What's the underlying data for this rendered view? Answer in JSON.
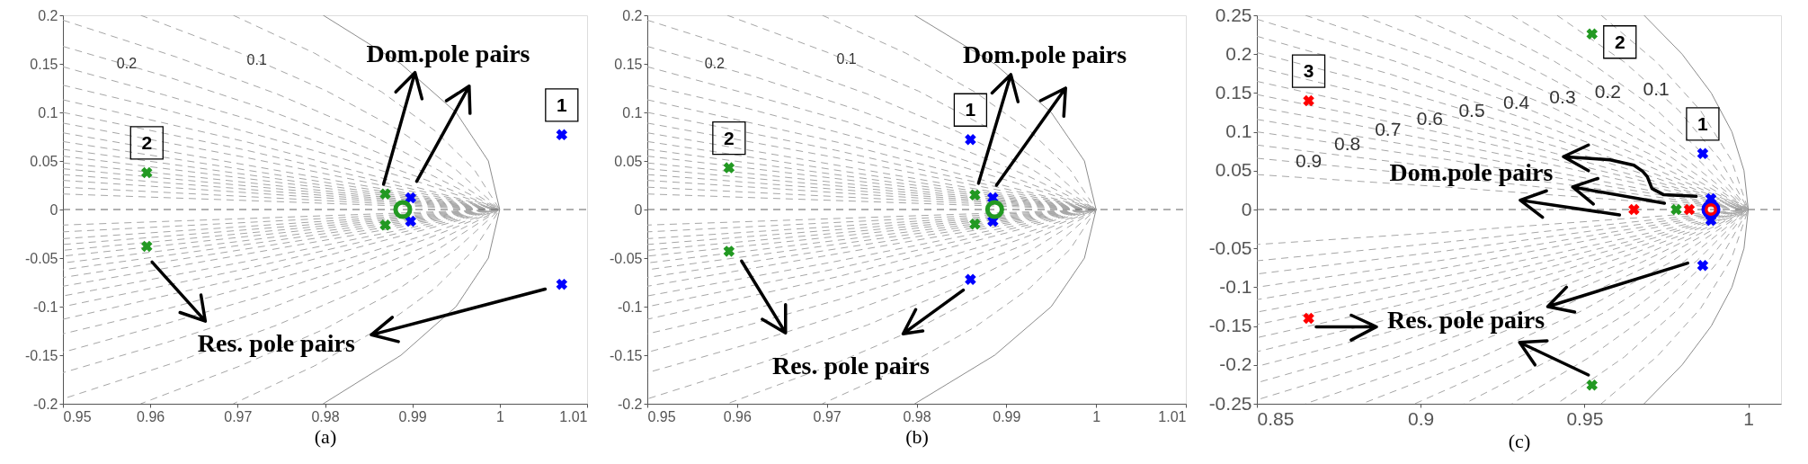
{
  "chart_data": [
    {
      "type": "scatter",
      "xlabel": "(a)",
      "xlim": [
        0.95,
        1.01
      ],
      "xticks": [
        0.95,
        0.96,
        0.97,
        0.98,
        0.99,
        1,
        1.01
      ],
      "ylim": [
        -0.2,
        0.2
      ],
      "yticks": [
        -0.2,
        -0.15,
        -0.1,
        -0.05,
        0,
        0.05,
        0.1,
        0.15,
        0.2
      ],
      "series": [
        {
          "type": "line",
          "line_style": "dashed",
          "color": "#a6a6a6",
          "x": [
            0.9695,
            0.9788,
            0.9865,
            0.9926,
            0.9971,
            1,
            0.9971,
            0.9926,
            0.9865,
            0.9788,
            0.9695
          ],
          "values": [
            0.2,
            0.161,
            0.121,
            0.081,
            0.041,
            0,
            -0.041,
            -0.081,
            -0.121,
            -0.161,
            -0.2
          ]
        },
        {
          "type": "line",
          "line_style": "dashed",
          "color": "#a6a6a6",
          "x": [
            0.9589,
            0.9703,
            0.9802,
            0.9884,
            0.995,
            1,
            0.995,
            0.9884,
            0.9802,
            0.9703,
            0.9589
          ],
          "values": [
            0.2,
            0.161,
            0.122,
            0.082,
            0.041,
            0,
            -0.041,
            -0.082,
            -0.122,
            -0.161,
            -0.2
          ]
        },
        {
          "type": "line",
          "line_style": "dashed",
          "color": "#a6a6a6",
          "x": [
            0.95,
            0.963,
            0.9745,
            0.9846,
            0.9931,
            1,
            0.9931,
            0.9846,
            0.9745,
            0.963,
            0.95
          ],
          "values": [
            0.195,
            0.157,
            0.119,
            0.08,
            0.04,
            0,
            -0.04,
            -0.08,
            -0.119,
            -0.157,
            -0.195
          ]
        },
        {
          "type": "line",
          "line_style": "dashed",
          "color": "#a6a6a6",
          "x": [
            0.95,
            0.9622,
            0.9733,
            0.9833,
            0.9923,
            1,
            0.9923,
            0.9833,
            0.9733,
            0.9622,
            0.95
          ],
          "values": [
            0.168,
            0.136,
            0.103,
            0.069,
            0.035,
            0,
            -0.035,
            -0.069,
            -0.103,
            -0.136,
            -0.168
          ]
        },
        {
          "type": "line",
          "line_style": "dashed",
          "color": "#a6a6a6",
          "x": [
            0.95,
            0.9616,
            0.9724,
            0.9825,
            0.9917,
            1,
            0.9917,
            0.9825,
            0.9724,
            0.9616,
            0.95
          ],
          "values": [
            0.147,
            0.118,
            0.09,
            0.06,
            0.03,
            0,
            -0.03,
            -0.06,
            -0.09,
            -0.118,
            -0.147
          ]
        },
        {
          "type": "line",
          "line_style": "dashed",
          "color": "#a6a6a6",
          "x": [
            0.95,
            0.9612,
            0.9718,
            0.9818,
            0.9912,
            1,
            0.9912,
            0.9818,
            0.9718,
            0.9612,
            0.95
          ],
          "values": [
            0.128,
            0.104,
            0.078,
            0.053,
            0.027,
            0,
            -0.027,
            -0.053,
            -0.078,
            -0.104,
            -0.128
          ]
        },
        {
          "type": "line",
          "line_style": "dashed",
          "color": "#a6a6a6",
          "x": [
            0.95,
            0.9713,
            1,
            0.9713,
            0.95
          ],
          "values": [
            0.113,
            0.069,
            0,
            -0.069,
            -0.113
          ]
        },
        {
          "type": "line",
          "line_style": "dashed",
          "color": "#a6a6a6",
          "x": [
            0.95,
            0.971,
            1,
            0.971,
            0.95
          ],
          "values": [
            0.1,
            0.061,
            0,
            -0.061,
            -0.1
          ]
        },
        {
          "type": "line",
          "line_style": "dashed",
          "color": "#a6a6a6",
          "x": [
            0.95,
            0.9707,
            1,
            0.9707,
            0.95
          ],
          "values": [
            0.089,
            0.054,
            0,
            -0.054,
            -0.089
          ]
        },
        {
          "type": "line",
          "line_style": "dashed",
          "color": "#a6a6a6",
          "x": [
            0.95,
            1,
            0.95
          ],
          "values": [
            0.079,
            0,
            -0.079
          ]
        },
        {
          "type": "line",
          "line_style": "dashed",
          "color": "#a6a6a6",
          "x": [
            0.95,
            1,
            0.95
          ],
          "values": [
            0.07,
            0,
            -0.07
          ]
        },
        {
          "type": "line",
          "line_style": "dashed",
          "color": "#a6a6a6",
          "x": [
            0.95,
            1,
            0.95
          ],
          "values": [
            0.062,
            0,
            -0.062
          ]
        },
        {
          "type": "line",
          "line_style": "dashed",
          "color": "#a6a6a6",
          "x": [
            0.95,
            1,
            0.95
          ],
          "values": [
            0.055,
            0,
            -0.055
          ]
        },
        {
          "type": "line",
          "line_style": "dashed",
          "color": "#a6a6a6",
          "x": [
            0.95,
            1,
            0.95
          ],
          "values": [
            0.048,
            0,
            -0.048
          ]
        },
        {
          "type": "line",
          "line_style": "dashed",
          "color": "#a6a6a6",
          "x": [
            0.95,
            1,
            0.95
          ],
          "values": [
            0.042,
            0,
            -0.042
          ]
        },
        {
          "type": "line",
          "line_style": "dashed",
          "color": "#a6a6a6",
          "x": [
            0.95,
            1,
            0.95
          ],
          "values": [
            0.036,
            0,
            -0.036
          ]
        },
        {
          "type": "line",
          "line_style": "dashed",
          "color": "#a6a6a6",
          "x": [
            0.95,
            1,
            0.95
          ],
          "values": [
            0.03,
            0,
            -0.03
          ]
        },
        {
          "type": "line",
          "line_style": "dashed",
          "color": "#a6a6a6",
          "x": [
            0.95,
            1,
            0.95
          ],
          "values": [
            0.023,
            0,
            -0.023
          ]
        },
        {
          "type": "line",
          "line_style": "dashed",
          "color": "#a6a6a6",
          "x": [
            0.95,
            1,
            0.95
          ],
          "values": [
            0.016,
            0,
            -0.016
          ]
        },
        {
          "type": "line",
          "line_style": "dashed",
          "color": "#606060",
          "x": [
            0.95,
            1.01
          ],
          "values": [
            0,
            0
          ]
        },
        {
          "type": "line",
          "line_style": "solid",
          "color": "#8c8c8c",
          "x": [
            0.9798,
            0.9887,
            0.995,
            0.9987,
            1,
            0.9987,
            0.995,
            0.9887,
            0.9798
          ],
          "values": [
            0.2,
            0.15,
            0.1,
            0.05,
            0,
            -0.05,
            -0.1,
            -0.15,
            -0.2
          ]
        },
        {
          "type": "line",
          "line_style": "solid",
          "color": "#000000",
          "x": [
            0.9867,
            0.9903,
            0.9881,
            0.9903,
            0.9911
          ],
          "values": [
            0.026,
            0.141,
            0.121,
            0.141,
            0.114
          ]
        },
        {
          "type": "line",
          "line_style": "solid",
          "color": "#000000",
          "x": [
            0.9905,
            0.9965,
            0.9939,
            0.9965,
            0.9966
          ],
          "values": [
            0.029,
            0.127,
            0.112,
            0.127,
            0.099
          ]
        },
        {
          "type": "line",
          "line_style": "solid",
          "color": "#000000",
          "x": [
            0.9602,
            0.9663,
            0.9634,
            0.9663,
            0.9658
          ],
          "values": [
            -0.054,
            -0.115,
            -0.106,
            -0.115,
            -0.088
          ]
        },
        {
          "type": "line",
          "line_style": "solid",
          "color": "#000000",
          "x": [
            1.0052,
            0.9853,
            0.9877,
            0.9853,
            0.9884
          ],
          "values": [
            -0.082,
            -0.129,
            -0.111,
            -0.129,
            -0.136
          ]
        },
        {
          "name": "2",
          "marker": "cross",
          "color": "#229922",
          "x": [
            0.9596,
            0.9596
          ],
          "values": [
            0.038,
            -0.038
          ]
        },
        {
          "marker": "cross",
          "color": "#229922",
          "x": [
            0.9869,
            0.9869
          ],
          "values": [
            0.016,
            -0.016
          ]
        },
        {
          "name": "1",
          "marker": "cross",
          "color": "#0000ff",
          "x": [
            1.0071,
            1.0071
          ],
          "values": [
            0.077,
            -0.077
          ]
        },
        {
          "marker": "cross",
          "color": "#0000ff",
          "x": [
            0.9898,
            0.9898
          ],
          "values": [
            0.012,
            -0.012
          ]
        },
        {
          "marker": "circle",
          "color": "#229922",
          "x": [
            0.9889
          ],
          "values": [
            0
          ]
        }
      ],
      "annotations": [
        "Dom.pole pairs",
        "Res. pole pairs",
        {
          "text": "0.2",
          "x": 0.9573,
          "y": 0.15
        },
        {
          "text": "0.1",
          "x": 0.9722,
          "y": 0.154
        }
      ]
    },
    {
      "type": "scatter",
      "xlabel": "(b)",
      "xlim": [
        0.95,
        1.01
      ],
      "xticks": [
        0.95,
        0.96,
        0.97,
        0.98,
        0.99,
        1,
        1.01
      ],
      "ylim": [
        -0.2,
        0.2
      ],
      "yticks": [
        -0.2,
        -0.15,
        -0.1,
        -0.05,
        0,
        0.05,
        0.1,
        0.15,
        0.2
      ],
      "series": [
        {
          "type": "line",
          "line_style": "dashed",
          "color": "#a6a6a6",
          "x": [
            0.9695,
            0.9788,
            0.9865,
            0.9926,
            0.9971,
            1,
            0.9971,
            0.9926,
            0.9865,
            0.9788,
            0.9695
          ],
          "values": [
            0.2,
            0.161,
            0.121,
            0.081,
            0.041,
            0,
            -0.041,
            -0.081,
            -0.121,
            -0.161,
            -0.2
          ]
        },
        {
          "type": "line",
          "line_style": "dashed",
          "color": "#a6a6a6",
          "x": [
            0.9589,
            0.9703,
            0.9802,
            0.9884,
            0.995,
            1,
            0.995,
            0.9884,
            0.9802,
            0.9703,
            0.9589
          ],
          "values": [
            0.2,
            0.161,
            0.122,
            0.082,
            0.041,
            0,
            -0.041,
            -0.082,
            -0.122,
            -0.161,
            -0.2
          ]
        },
        {
          "type": "line",
          "line_style": "dashed",
          "color": "#a6a6a6",
          "x": [
            0.95,
            0.963,
            0.9745,
            0.9846,
            0.9931,
            1,
            0.9931,
            0.9846,
            0.9745,
            0.963,
            0.95
          ],
          "values": [
            0.195,
            0.157,
            0.119,
            0.08,
            0.04,
            0,
            -0.04,
            -0.08,
            -0.119,
            -0.157,
            -0.195
          ]
        },
        {
          "type": "line",
          "line_style": "dashed",
          "color": "#a6a6a6",
          "x": [
            0.95,
            0.9622,
            0.9733,
            0.9833,
            0.9923,
            1,
            0.9923,
            0.9833,
            0.9733,
            0.9622,
            0.95
          ],
          "values": [
            0.168,
            0.136,
            0.103,
            0.069,
            0.035,
            0,
            -0.035,
            -0.069,
            -0.103,
            -0.136,
            -0.168
          ]
        },
        {
          "type": "line",
          "line_style": "dashed",
          "color": "#a6a6a6",
          "x": [
            0.95,
            0.9616,
            0.9724,
            0.9825,
            0.9917,
            1,
            0.9917,
            0.9825,
            0.9724,
            0.9616,
            0.95
          ],
          "values": [
            0.147,
            0.118,
            0.09,
            0.06,
            0.03,
            0,
            -0.03,
            -0.06,
            -0.09,
            -0.118,
            -0.147
          ]
        },
        {
          "type": "line",
          "line_style": "dashed",
          "color": "#a6a6a6",
          "x": [
            0.95,
            0.9612,
            0.9718,
            0.9818,
            0.9912,
            1,
            0.9912,
            0.9818,
            0.9718,
            0.9612,
            0.95
          ],
          "values": [
            0.128,
            0.104,
            0.078,
            0.053,
            0.027,
            0,
            -0.027,
            -0.053,
            -0.078,
            -0.104,
            -0.128
          ]
        },
        {
          "type": "line",
          "line_style": "dashed",
          "color": "#a6a6a6",
          "x": [
            0.95,
            0.9713,
            1,
            0.9713,
            0.95
          ],
          "values": [
            0.113,
            0.069,
            0,
            -0.069,
            -0.113
          ]
        },
        {
          "type": "line",
          "line_style": "dashed",
          "color": "#a6a6a6",
          "x": [
            0.95,
            0.971,
            1,
            0.971,
            0.95
          ],
          "values": [
            0.1,
            0.061,
            0,
            -0.061,
            -0.1
          ]
        },
        {
          "type": "line",
          "line_style": "dashed",
          "color": "#a6a6a6",
          "x": [
            0.95,
            0.9707,
            1,
            0.9707,
            0.95
          ],
          "values": [
            0.089,
            0.054,
            0,
            -0.054,
            -0.089
          ]
        },
        {
          "type": "line",
          "line_style": "dashed",
          "color": "#a6a6a6",
          "x": [
            0.95,
            1,
            0.95
          ],
          "values": [
            0.079,
            0,
            -0.079
          ]
        },
        {
          "type": "line",
          "line_style": "dashed",
          "color": "#a6a6a6",
          "x": [
            0.95,
            1,
            0.95
          ],
          "values": [
            0.07,
            0,
            -0.07
          ]
        },
        {
          "type": "line",
          "line_style": "dashed",
          "color": "#a6a6a6",
          "x": [
            0.95,
            1,
            0.95
          ],
          "values": [
            0.062,
            0,
            -0.062
          ]
        },
        {
          "type": "line",
          "line_style": "dashed",
          "color": "#a6a6a6",
          "x": [
            0.95,
            1,
            0.95
          ],
          "values": [
            0.055,
            0,
            -0.055
          ]
        },
        {
          "type": "line",
          "line_style": "dashed",
          "color": "#a6a6a6",
          "x": [
            0.95,
            1,
            0.95
          ],
          "values": [
            0.048,
            0,
            -0.048
          ]
        },
        {
          "type": "line",
          "line_style": "dashed",
          "color": "#a6a6a6",
          "x": [
            0.95,
            1,
            0.95
          ],
          "values": [
            0.042,
            0,
            -0.042
          ]
        },
        {
          "type": "line",
          "line_style": "dashed",
          "color": "#a6a6a6",
          "x": [
            0.95,
            1,
            0.95
          ],
          "values": [
            0.036,
            0,
            -0.036
          ]
        },
        {
          "type": "line",
          "line_style": "dashed",
          "color": "#a6a6a6",
          "x": [
            0.95,
            1,
            0.95
          ],
          "values": [
            0.03,
            0,
            -0.03
          ]
        },
        {
          "type": "line",
          "line_style": "dashed",
          "color": "#a6a6a6",
          "x": [
            0.95,
            1,
            0.95
          ],
          "values": [
            0.023,
            0,
            -0.023
          ]
        },
        {
          "type": "line",
          "line_style": "dashed",
          "color": "#a6a6a6",
          "x": [
            0.95,
            1,
            0.95
          ],
          "values": [
            0.016,
            0,
            -0.016
          ]
        },
        {
          "type": "line",
          "line_style": "dashed",
          "color": "#606060",
          "x": [
            0.95,
            1.01
          ],
          "values": [
            0,
            0
          ]
        },
        {
          "type": "line",
          "line_style": "solid",
          "color": "#8c8c8c",
          "x": [
            0.9798,
            0.9887,
            0.995,
            0.9987,
            1,
            0.9987,
            0.995,
            0.9887,
            0.9798
          ],
          "values": [
            0.2,
            0.15,
            0.1,
            0.05,
            0,
            -0.05,
            -0.1,
            -0.15,
            -0.2
          ]
        },
        {
          "type": "line",
          "line_style": "solid",
          "color": "#000000",
          "x": [
            0.9869,
            0.9905,
            0.9884,
            0.9905,
            0.9913
          ],
          "values": [
            0.027,
            0.139,
            0.12,
            0.139,
            0.111
          ]
        },
        {
          "type": "line",
          "line_style": "solid",
          "color": "#000000",
          "x": [
            0.9889,
            0.9966,
            0.9938,
            0.9966,
            0.9964
          ],
          "values": [
            0.025,
            0.125,
            0.112,
            0.125,
            0.096
          ]
        },
        {
          "type": "line",
          "line_style": "solid",
          "color": "#000000",
          "x": [
            0.9605,
            0.9654,
            0.9628,
            0.9654,
            0.9654
          ],
          "values": [
            -0.053,
            -0.127,
            -0.113,
            -0.127,
            -0.098
          ]
        },
        {
          "type": "line",
          "line_style": "solid",
          "color": "#000000",
          "x": [
            0.9852,
            0.9785,
            0.9799,
            0.9785,
            0.9807
          ],
          "values": [
            -0.083,
            -0.128,
            -0.103,
            -0.128,
            -0.125
          ]
        },
        {
          "name": "2",
          "marker": "cross",
          "color": "#229922",
          "x": [
            0.9591,
            0.9591
          ],
          "values": [
            0.043,
            -0.043
          ]
        },
        {
          "marker": "cross",
          "color": "#229922",
          "x": [
            0.9865,
            0.9865
          ],
          "values": [
            0.015,
            -0.015
          ]
        },
        {
          "name": "1",
          "marker": "cross",
          "color": "#0000ff",
          "x": [
            0.986,
            0.986
          ],
          "values": [
            0.072,
            -0.072
          ]
        },
        {
          "marker": "cross",
          "color": "#0000ff",
          "x": [
            0.9885,
            0.9885
          ],
          "values": [
            0.012,
            -0.012
          ]
        },
        {
          "marker": "circle",
          "color": "#229922",
          "x": [
            0.9887
          ],
          "values": [
            0
          ]
        }
      ],
      "annotations": [
        "Dom.pole pairs",
        "Res. pole pairs",
        {
          "text": "0.2",
          "x": 0.9575,
          "y": 0.15
        },
        {
          "text": "0.1",
          "x": 0.9722,
          "y": 0.155
        }
      ]
    },
    {
      "type": "scatter",
      "xlabel": "(c)",
      "xlim": [
        0.85,
        1.01
      ],
      "xticks": [
        0.85,
        0.9,
        0.95,
        1
      ],
      "ylim": [
        -0.25,
        0.25
      ],
      "yticks": [
        -0.25,
        -0.2,
        -0.15,
        -0.1,
        -0.05,
        0,
        0.05,
        0.1,
        0.15,
        0.2,
        0.25
      ],
      "series": [
        {
          "type": "line",
          "line_style": "dashed",
          "color": "#a6a6a6",
          "x": [
            0.9551,
            0.9722,
            0.9855,
            0.9948,
            1,
            0.9948,
            0.9855,
            0.9722,
            0.9551
          ],
          "values": [
            0.25,
            0.189,
            0.127,
            0.064,
            0,
            -0.064,
            -0.127,
            -0.189,
            -0.25
          ]
        },
        {
          "type": "line",
          "line_style": "dashed",
          "color": "#a6a6a6",
          "x": [
            0.9416,
            0.9621,
            0.9787,
            0.9914,
            1,
            0.9914,
            0.9787,
            0.9621,
            0.9416
          ],
          "values": [
            0.25,
            0.19,
            0.128,
            0.064,
            0,
            -0.064,
            -0.128,
            -0.19,
            -0.25
          ]
        },
        {
          "type": "line",
          "line_style": "dashed",
          "color": "#a6a6a6",
          "x": [
            0.9278,
            0.9516,
            0.9718,
            0.9879,
            1,
            0.9879,
            0.9718,
            0.9516,
            0.9278
          ],
          "values": [
            0.25,
            0.19,
            0.129,
            0.065,
            0,
            -0.065,
            -0.129,
            -0.19,
            -0.25
          ]
        },
        {
          "type": "line",
          "line_style": "dashed",
          "color": "#a6a6a6",
          "x": [
            0.9133,
            0.9407,
            0.9644,
            0.9843,
            1,
            0.9843,
            0.9644,
            0.9407,
            0.9133
          ],
          "values": [
            0.25,
            0.191,
            0.13,
            0.066,
            0,
            -0.066,
            -0.13,
            -0.191,
            -0.25
          ]
        },
        {
          "type": "line",
          "line_style": "dashed",
          "color": "#a6a6a6",
          "x": [
            0.8982,
            0.9292,
            0.9567,
            0.9804,
            1,
            0.9804,
            0.9567,
            0.9292,
            0.8982
          ],
          "values": [
            0.25,
            0.192,
            0.131,
            0.067,
            0,
            -0.067,
            -0.131,
            -0.192,
            -0.25
          ]
        },
        {
          "type": "line",
          "line_style": "dashed",
          "color": "#a6a6a6",
          "x": [
            0.8821,
            0.9169,
            0.9484,
            0.9762,
            1,
            0.9762,
            0.9484,
            0.9169,
            0.8821
          ],
          "values": [
            0.25,
            0.193,
            0.132,
            0.068,
            0,
            -0.068,
            -0.132,
            -0.193,
            -0.25
          ]
        },
        {
          "type": "line",
          "line_style": "dashed",
          "color": "#a6a6a6",
          "x": [
            0.8648,
            0.9037,
            0.9394,
            0.9716,
            1,
            0.9716,
            0.9394,
            0.9037,
            0.8648
          ],
          "values": [
            0.25,
            0.194,
            0.133,
            0.068,
            0,
            -0.068,
            -0.133,
            -0.194,
            -0.25
          ]
        },
        {
          "type": "line",
          "line_style": "dashed",
          "color": "#a6a6a6",
          "x": [
            0.85,
            0.892,
            0.9313,
            0.9674,
            1,
            0.9674,
            0.9313,
            0.892,
            0.85
          ],
          "values": [
            0.245,
            0.191,
            0.132,
            0.068,
            0,
            -0.068,
            -0.132,
            -0.191,
            -0.245
          ]
        },
        {
          "type": "line",
          "line_style": "dashed",
          "color": "#a6a6a6",
          "x": [
            0.85,
            0.8909,
            0.9297,
            0.9662,
            1,
            0.9662,
            0.9297,
            0.8909,
            0.85
          ],
          "values": [
            0.223,
            0.174,
            0.12,
            0.062,
            0,
            -0.062,
            -0.12,
            -0.174,
            -0.223
          ]
        },
        {
          "type": "line",
          "line_style": "dashed",
          "color": "#a6a6a6",
          "x": [
            0.85,
            0.8899,
            0.9284,
            0.9652,
            1,
            0.9652,
            0.9284,
            0.8899,
            0.85
          ],
          "values": [
            0.202,
            0.158,
            0.109,
            0.056,
            0,
            -0.056,
            -0.109,
            -0.158,
            -0.202
          ]
        },
        {
          "type": "line",
          "line_style": "dashed",
          "color": "#a6a6a6",
          "x": [
            0.85,
            0.8813,
            0.9121,
            0.9422,
            0.9715,
            1,
            0.9715,
            0.9422,
            0.9121,
            0.8813,
            0.85
          ],
          "values": [
            0.183,
            0.151,
            0.117,
            0.08,
            0.041,
            0,
            -0.041,
            -0.08,
            -0.117,
            -0.151,
            -0.183
          ]
        },
        {
          "type": "line",
          "line_style": "dashed",
          "color": "#a6a6a6",
          "x": [
            0.85,
            0.8807,
            0.9112,
            0.9413,
            0.9709,
            1,
            0.9709,
            0.9413,
            0.9112,
            0.8807,
            0.85
          ],
          "values": [
            0.165,
            0.136,
            0.105,
            0.072,
            0.037,
            0,
            -0.037,
            -0.072,
            -0.105,
            -0.136,
            -0.165
          ]
        },
        {
          "type": "line",
          "line_style": "dashed",
          "color": "#a6a6a6",
          "x": [
            0.85,
            0.8802,
            0.9104,
            0.9404,
            0.9703,
            1,
            0.9703,
            0.9404,
            0.9104,
            0.8802,
            0.85
          ],
          "values": [
            0.148,
            0.122,
            0.095,
            0.065,
            0.034,
            0,
            -0.034,
            -0.065,
            -0.095,
            -0.122,
            -0.148
          ]
        },
        {
          "type": "line",
          "line_style": "dashed",
          "color": "#a6a6a6",
          "x": [
            0.85,
            0.8798,
            0.9097,
            0.9397,
            0.9699,
            1,
            0.9699,
            0.9397,
            0.9097,
            0.8798,
            0.85
          ],
          "values": [
            0.132,
            0.109,
            0.084,
            0.058,
            0.03,
            0,
            -0.03,
            -0.058,
            -0.084,
            -0.109,
            -0.132
          ]
        },
        {
          "type": "line",
          "line_style": "dashed",
          "color": "#a6a6a6",
          "x": [
            0.85,
            0.9091,
            1,
            0.9091,
            0.85
          ],
          "values": [
            0.116,
            0.074,
            0,
            -0.074,
            -0.116
          ]
        },
        {
          "type": "line",
          "line_style": "dashed",
          "color": "#a6a6a6",
          "x": [
            0.85,
            0.9086,
            1,
            0.9086,
            0.85
          ],
          "values": [
            0.1,
            0.064,
            0,
            -0.064,
            -0.1
          ]
        },
        {
          "type": "line",
          "line_style": "dashed",
          "color": "#a6a6a6",
          "x": [
            0.85,
            0.9081,
            1,
            0.9081,
            0.85
          ],
          "values": [
            0.083,
            0.053,
            0,
            -0.053,
            -0.083
          ]
        },
        {
          "type": "line",
          "line_style": "dashed",
          "color": "#a6a6a6",
          "x": [
            0.85,
            0.9077,
            1,
            0.9077,
            0.85
          ],
          "values": [
            0.066,
            0.042,
            0,
            -0.042,
            -0.066
          ]
        },
        {
          "type": "line",
          "line_style": "dashed",
          "color": "#a6a6a6",
          "x": [
            0.85,
            0.9074,
            1,
            0.9074,
            0.85
          ],
          "values": [
            0.045,
            0.029,
            0,
            -0.029,
            -0.045
          ]
        },
        {
          "type": "line",
          "line_style": "dashed",
          "color": "#606060",
          "x": [
            0.85,
            1.01
          ],
          "values": [
            0,
            0
          ]
        },
        {
          "type": "line",
          "line_style": "solid",
          "color": "#8c8c8c",
          "x": [
            0.9682,
            0.9798,
            0.9887,
            0.995,
            0.9987,
            1,
            0.9987,
            0.995,
            0.9887,
            0.9798,
            0.9682
          ],
          "values": [
            0.25,
            0.2,
            0.15,
            0.1,
            0.05,
            0,
            -0.05,
            -0.1,
            -0.15,
            -0.2,
            -0.25
          ]
        },
        {
          "type": "line",
          "line_style": "solid",
          "color": "#000000",
          "x": [
            0.9841,
            0.9742,
            0.9706,
            0.9692,
            0.9678,
            0.9651,
            0.9578,
            0.9436,
            0.9512,
            0.9436,
            0.9512
          ],
          "values": [
            0.017,
            0.019,
            0.027,
            0.042,
            0.049,
            0.057,
            0.064,
            0.068,
            0.083,
            0.068,
            0.05
          ]
        },
        {
          "type": "line",
          "line_style": "solid",
          "color": "#000000",
          "x": [
            0.9744,
            0.9464,
            0.9541,
            0.9464,
            0.9527
          ],
          "values": [
            0.008,
            0.029,
            0.04,
            0.029,
            0.007
          ]
        },
        {
          "type": "line",
          "line_style": "solid",
          "color": "#000000",
          "x": [
            0.9607,
            0.9304,
            0.9384,
            0.9304,
            0.9372
          ],
          "values": [
            -0.007,
            0.012,
            0.024,
            0.012,
            -0.01
          ]
        },
        {
          "type": "line",
          "line_style": "solid",
          "color": "#000000",
          "x": [
            0.9815,
            0.9388,
            0.9445,
            0.9388,
            0.947
          ],
          "values": [
            -0.069,
            -0.125,
            -0.1,
            -0.125,
            -0.132
          ]
        },
        {
          "type": "line",
          "line_style": "solid",
          "color": "#000000",
          "x": [
            0.9512,
            0.9302,
            0.9386,
            0.9302,
            0.9349
          ],
          "values": [
            -0.213,
            -0.171,
            -0.169,
            -0.171,
            -0.2
          ]
        },
        {
          "type": "line",
          "line_style": "solid",
          "color": "#000000",
          "x": [
            0.8681,
            0.8865,
            0.8788,
            0.8865,
            0.8788
          ],
          "values": [
            -0.151,
            -0.151,
            -0.136,
            -0.151,
            -0.168
          ]
        },
        {
          "name": "3",
          "marker": "cross",
          "color": "#ff0000",
          "x": [
            0.8658,
            0.8658
          ],
          "values": [
            0.14,
            -0.14
          ]
        },
        {
          "marker": "cross",
          "color": "#ff0000",
          "x": [
            0.9651,
            0.982
          ],
          "values": [
            0,
            0
          ]
        },
        {
          "name": "2",
          "marker": "cross",
          "color": "#229922",
          "x": [
            0.9523,
            0.9523
          ],
          "values": [
            0.226,
            -0.226
          ]
        },
        {
          "marker": "cross",
          "color": "#229922",
          "x": [
            0.978
          ],
          "values": [
            0
          ]
        },
        {
          "name": "1",
          "marker": "cross",
          "color": "#0000ff",
          "x": [
            0.9861,
            0.9861
          ],
          "values": [
            0.072,
            -0.072
          ]
        },
        {
          "marker": "cross",
          "color": "#0000ff",
          "x": [
            0.9886,
            0.9886
          ],
          "values": [
            0.014,
            -0.014
          ]
        },
        {
          "marker": "circle",
          "color": "#0000ff",
          "x": [
            0.9886
          ],
          "values": [
            0
          ]
        },
        {
          "marker": "circle",
          "color": "#ff0000",
          "x": [
            0.9886
          ],
          "values": [
            0
          ]
        }
      ],
      "annotations": [
        "Dom.pole pairs",
        "Res. pole pairs",
        {
          "text": "0.1",
          "x": 0.9719,
          "y": 0.154
        },
        {
          "text": "0.2",
          "x": 0.9571,
          "y": 0.15
        },
        {
          "text": "0.3",
          "x": 0.9433,
          "y": 0.143
        },
        {
          "text": "0.4",
          "x": 0.9292,
          "y": 0.136
        },
        {
          "text": "0.5",
          "x": 0.9156,
          "y": 0.126
        },
        {
          "text": "0.6",
          "x": 0.9028,
          "y": 0.116
        },
        {
          "text": "0.7",
          "x": 0.89,
          "y": 0.102
        },
        {
          "text": "0.8",
          "x": 0.8776,
          "y": 0.083
        },
        {
          "text": "0.9",
          "x": 0.8658,
          "y": 0.061
        }
      ]
    }
  ]
}
